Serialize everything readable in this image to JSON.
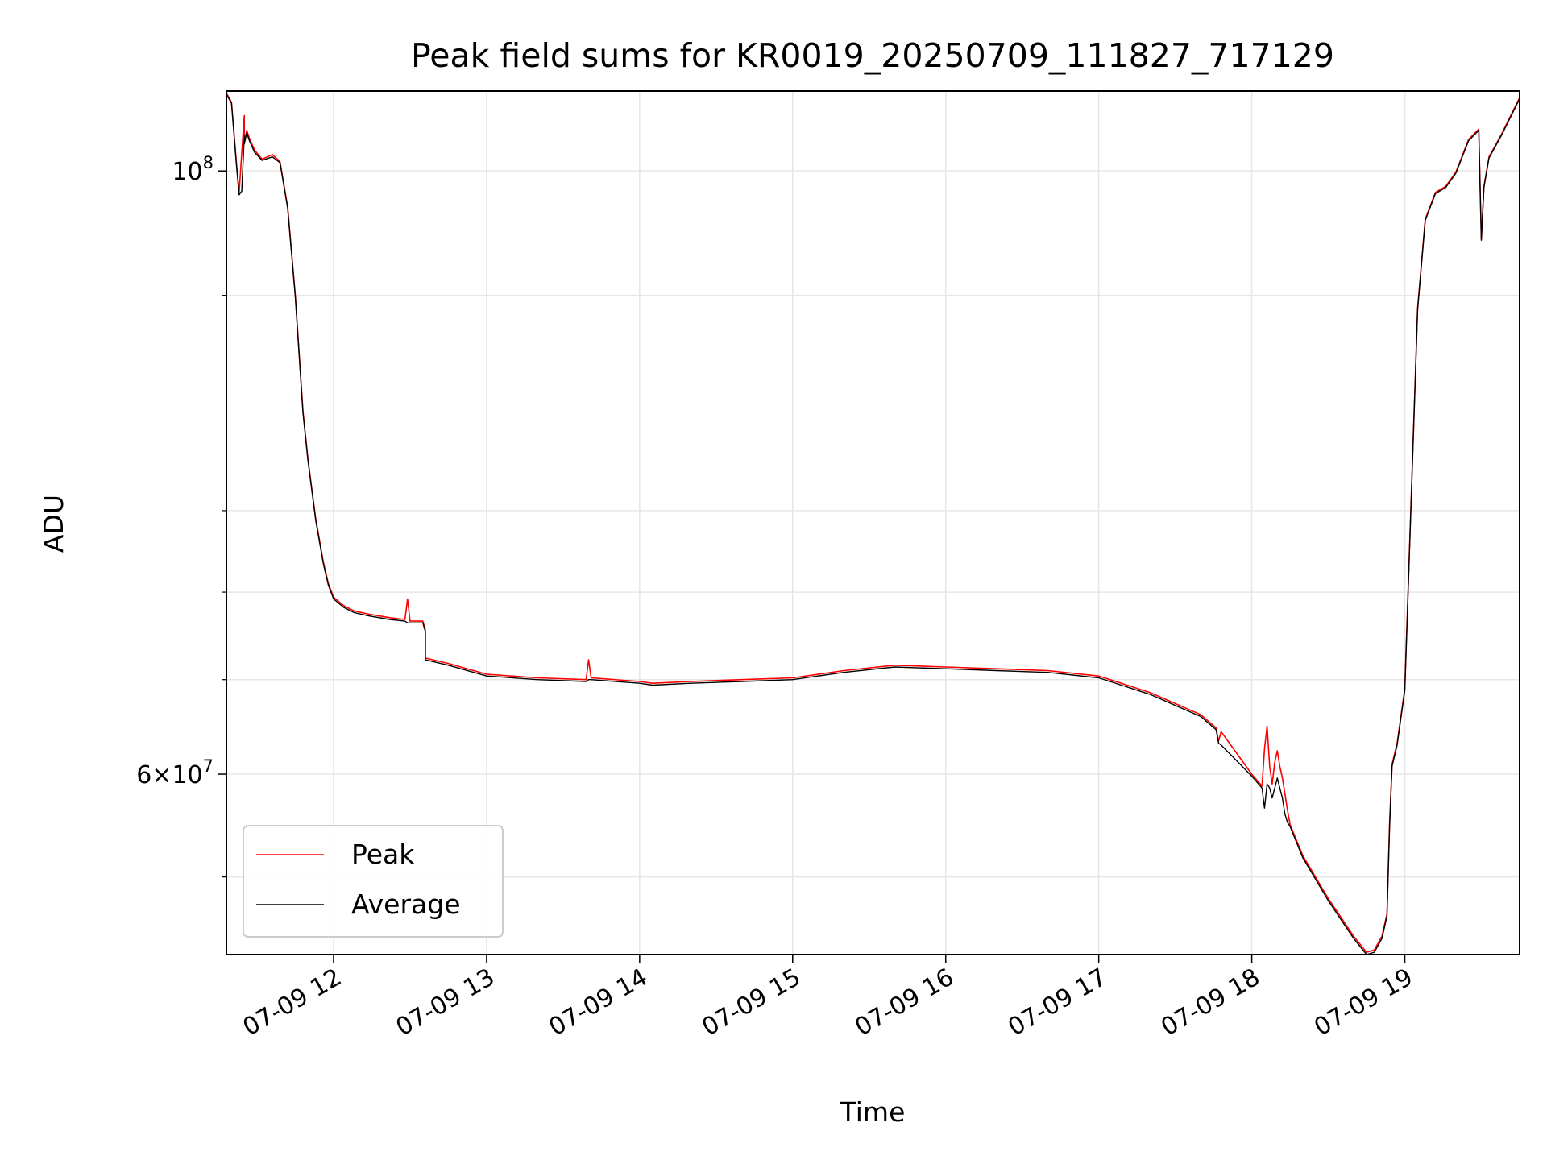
{
  "chart_data": {
    "type": "line",
    "title": "Peak field sums for KR0019_20250709_111827_717129",
    "xlabel": "Time",
    "ylabel": "ADU",
    "xscale": "time",
    "yscale": "log",
    "xlim": [
      "2025-07-09 11:18",
      "2025-07-09 19:45"
    ],
    "ylim": [
      51500000,
      107000000
    ],
    "grid": true,
    "legend_position": "lower-left",
    "x_ticks": [
      {
        "value": "2025-07-09 12:00",
        "label": "07-09 12"
      },
      {
        "value": "2025-07-09 13:00",
        "label": "07-09 13"
      },
      {
        "value": "2025-07-09 14:00",
        "label": "07-09 14"
      },
      {
        "value": "2025-07-09 15:00",
        "label": "07-09 15"
      },
      {
        "value": "2025-07-09 16:00",
        "label": "07-09 16"
      },
      {
        "value": "2025-07-09 17:00",
        "label": "07-09 17"
      },
      {
        "value": "2025-07-09 18:00",
        "label": "07-09 18"
      },
      {
        "value": "2025-07-09 19:00",
        "label": "07-09 19"
      }
    ],
    "y_ticks_major": [
      {
        "value": 60000000,
        "base": "6",
        "exp": "7",
        "kind": "mantissa"
      },
      {
        "value": 100000000,
        "base": "10",
        "exp": "8",
        "kind": "power"
      }
    ],
    "y_ticks_minor": [
      55000000,
      65000000,
      70000000,
      75000000,
      90000000
    ],
    "series": [
      {
        "name": "Peak",
        "color": "#ff0000",
        "x": [
          "2025-07-09 11:18",
          "2025-07-09 11:20",
          "2025-07-09 11:22",
          "2025-07-09 11:23",
          "2025-07-09 11:24",
          "2025-07-09 11:25",
          "2025-07-09 11:25",
          "2025-07-09 11:26",
          "2025-07-09 11:27",
          "2025-07-09 11:29",
          "2025-07-09 11:32",
          "2025-07-09 11:36",
          "2025-07-09 11:39",
          "2025-07-09 11:42",
          "2025-07-09 11:45",
          "2025-07-09 11:48",
          "2025-07-09 11:50",
          "2025-07-09 11:53",
          "2025-07-09 11:56",
          "2025-07-09 11:58",
          "2025-07-09 12:00",
          "2025-07-09 12:04",
          "2025-07-09 12:08",
          "2025-07-09 12:14",
          "2025-07-09 12:22",
          "2025-07-09 12:28",
          "2025-07-09 12:29",
          "2025-07-09 12:30",
          "2025-07-09 12:35",
          "2025-07-09 12:36",
          "2025-07-09 12:36",
          "2025-07-09 12:45",
          "2025-07-09 13:00",
          "2025-07-09 13:20",
          "2025-07-09 13:39",
          "2025-07-09 13:40",
          "2025-07-09 13:41",
          "2025-07-09 14:00",
          "2025-07-09 14:05",
          "2025-07-09 14:20",
          "2025-07-09 14:40",
          "2025-07-09 15:00",
          "2025-07-09 15:20",
          "2025-07-09 15:40",
          "2025-07-09 16:00",
          "2025-07-09 16:20",
          "2025-07-09 16:40",
          "2025-07-09 17:00",
          "2025-07-09 17:20",
          "2025-07-09 17:40",
          "2025-07-09 17:46",
          "2025-07-09 17:47",
          "2025-07-09 17:48",
          "2025-07-09 18:00",
          "2025-07-09 18:04",
          "2025-07-09 18:05",
          "2025-07-09 18:06",
          "2025-07-09 18:07",
          "2025-07-09 18:08",
          "2025-07-09 18:09",
          "2025-07-09 18:10",
          "2025-07-09 18:11",
          "2025-07-09 18:12",
          "2025-07-09 18:13",
          "2025-07-09 18:14",
          "2025-07-09 18:15",
          "2025-07-09 18:20",
          "2025-07-09 18:30",
          "2025-07-09 18:40",
          "2025-07-09 18:45",
          "2025-07-09 18:48",
          "2025-07-09 18:51",
          "2025-07-09 18:53",
          "2025-07-09 18:54",
          "2025-07-09 18:55",
          "2025-07-09 18:57",
          "2025-07-09 19:00",
          "2025-07-09 19:05",
          "2025-07-09 19:08",
          "2025-07-09 19:12",
          "2025-07-09 19:16",
          "2025-07-09 19:20",
          "2025-07-09 19:25",
          "2025-07-09 19:29",
          "2025-07-09 19:30",
          "2025-07-09 19:31",
          "2025-07-09 19:33",
          "2025-07-09 19:38",
          "2025-07-09 19:45"
        ],
        "values": [
          106800000,
          106000000,
          100500000,
          98200000,
          101500000,
          104800000,
          102500000,
          103500000,
          102800000,
          101800000,
          101000000,
          101400000,
          100800000,
          97000000,
          90000000,
          81600000,
          78300000,
          74500000,
          71800000,
          70500000,
          69700000,
          69200000,
          68900000,
          68700000,
          68500000,
          68400000,
          69600000,
          68300000,
          68300000,
          67800000,
          66200000,
          65900000,
          65300000,
          65100000,
          65000000,
          66100000,
          65100000,
          64900000,
          64800000,
          64900000,
          65000000,
          65100000,
          65500000,
          65800000,
          65700000,
          65600000,
          65500000,
          65200000,
          64300000,
          63100000,
          62400000,
          61700000,
          62200000,
          60000000,
          59400000,
          61300000,
          62500000,
          60400000,
          59500000,
          60600000,
          61200000,
          60400000,
          59800000,
          59000000,
          58200000,
          57500000,
          56000000,
          54000000,
          52300000,
          51600000,
          51700000,
          52300000,
          53300000,
          57500000,
          60500000,
          61600000,
          64500000,
          89000000,
          96000000,
          98200000,
          98700000,
          99900000,
          102700000,
          103600000,
          94400000,
          98700000,
          101200000,
          103200000,
          106400000
        ]
      },
      {
        "name": "Average",
        "color": "#000000",
        "x": [
          "2025-07-09 11:18",
          "2025-07-09 11:20",
          "2025-07-09 11:22",
          "2025-07-09 11:23",
          "2025-07-09 11:24",
          "2025-07-09 11:25",
          "2025-07-09 11:25",
          "2025-07-09 11:26",
          "2025-07-09 11:27",
          "2025-07-09 11:29",
          "2025-07-09 11:32",
          "2025-07-09 11:36",
          "2025-07-09 11:39",
          "2025-07-09 11:42",
          "2025-07-09 11:45",
          "2025-07-09 11:48",
          "2025-07-09 11:50",
          "2025-07-09 11:53",
          "2025-07-09 11:56",
          "2025-07-09 11:58",
          "2025-07-09 12:00",
          "2025-07-09 12:04",
          "2025-07-09 12:08",
          "2025-07-09 12:14",
          "2025-07-09 12:22",
          "2025-07-09 12:28",
          "2025-07-09 12:29",
          "2025-07-09 12:30",
          "2025-07-09 12:35",
          "2025-07-09 12:36",
          "2025-07-09 12:36",
          "2025-07-09 12:45",
          "2025-07-09 13:00",
          "2025-07-09 13:20",
          "2025-07-09 13:39",
          "2025-07-09 13:40",
          "2025-07-09 13:41",
          "2025-07-09 14:00",
          "2025-07-09 14:05",
          "2025-07-09 14:20",
          "2025-07-09 14:40",
          "2025-07-09 15:00",
          "2025-07-09 15:20",
          "2025-07-09 15:40",
          "2025-07-09 16:00",
          "2025-07-09 16:20",
          "2025-07-09 16:40",
          "2025-07-09 17:00",
          "2025-07-09 17:20",
          "2025-07-09 17:40",
          "2025-07-09 17:46",
          "2025-07-09 17:47",
          "2025-07-09 17:48",
          "2025-07-09 18:00",
          "2025-07-09 18:04",
          "2025-07-09 18:05",
          "2025-07-09 18:06",
          "2025-07-09 18:07",
          "2025-07-09 18:08",
          "2025-07-09 18:09",
          "2025-07-09 18:10",
          "2025-07-09 18:11",
          "2025-07-09 18:12",
          "2025-07-09 18:13",
          "2025-07-09 18:14",
          "2025-07-09 18:15",
          "2025-07-09 18:20",
          "2025-07-09 18:30",
          "2025-07-09 18:40",
          "2025-07-09 18:45",
          "2025-07-09 18:48",
          "2025-07-09 18:51",
          "2025-07-09 18:53",
          "2025-07-09 18:54",
          "2025-07-09 18:55",
          "2025-07-09 18:57",
          "2025-07-09 19:00",
          "2025-07-09 19:05",
          "2025-07-09 19:08",
          "2025-07-09 19:12",
          "2025-07-09 19:16",
          "2025-07-09 19:20",
          "2025-07-09 19:25",
          "2025-07-09 19:29",
          "2025-07-09 19:30",
          "2025-07-09 19:31",
          "2025-07-09 19:33",
          "2025-07-09 19:38",
          "2025-07-09 19:45"
        ],
        "values": [
          106700000,
          105900000,
          100300000,
          98000000,
          98300000,
          103000000,
          102300000,
          103300000,
          102600000,
          101600000,
          100900000,
          101200000,
          100700000,
          96900000,
          89900000,
          81500000,
          78200000,
          74400000,
          71700000,
          70400000,
          69600000,
          69100000,
          68800000,
          68600000,
          68400000,
          68300000,
          68200000,
          68200000,
          68200000,
          67700000,
          66100000,
          65800000,
          65200000,
          65000000,
          64900000,
          65000000,
          65000000,
          64800000,
          64700000,
          64800000,
          64900000,
          65000000,
          65400000,
          65700000,
          65600000,
          65500000,
          65400000,
          65100000,
          64200000,
          63000000,
          62300000,
          61600000,
          61500000,
          59900000,
          59300000,
          58300000,
          59500000,
          59300000,
          58800000,
          59300000,
          59800000,
          59300000,
          58800000,
          58000000,
          57600000,
          57400000,
          55900000,
          53900000,
          52200000,
          51500000,
          51600000,
          52200000,
          53200000,
          57400000,
          60400000,
          61500000,
          64400000,
          88900000,
          95900000,
          98100000,
          98600000,
          99800000,
          102600000,
          103500000,
          94300000,
          98600000,
          101100000,
          103100000,
          106300000
        ]
      }
    ]
  }
}
